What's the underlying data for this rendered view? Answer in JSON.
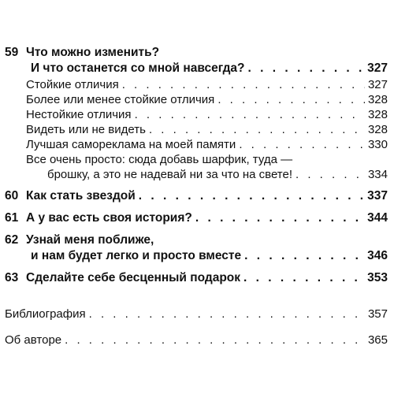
{
  "toc": {
    "ch59": {
      "number": "59",
      "title_line1": "Что можно изменить?",
      "title_line2": "И что останется со мной навсегда?",
      "page": "327",
      "sub": [
        {
          "title": "Стойкие отличия",
          "page": "327"
        },
        {
          "title": "Более или менее стойкие отличия",
          "page": "328"
        },
        {
          "title": "Нестойкие отличия",
          "page": "328"
        },
        {
          "title": "Видеть или не видеть",
          "page": "328"
        },
        {
          "title": "Лучшая самореклама на моей памяти",
          "page": "330"
        }
      ],
      "sub_multi": {
        "line1": "Все очень просто: сюда добавь шарфик, туда —",
        "line2": "брошку, а это не надевай ни за что на свете!",
        "page": "334"
      }
    },
    "ch60": {
      "number": "60",
      "title": "Как стать звездой",
      "page": "337"
    },
    "ch61": {
      "number": "61",
      "title": "А у вас есть своя история?",
      "page": "344"
    },
    "ch62": {
      "number": "62",
      "title_line1": "Узнай меня поближе,",
      "title_line2": "и нам будет легко и просто вместе",
      "page": "346"
    },
    "ch63": {
      "number": "63",
      "title": "Сделайте себе бесценный подарок",
      "page": "353"
    },
    "back": [
      {
        "title": "Библиография",
        "page": "357"
      },
      {
        "title": "Об авторе",
        "page": "365"
      }
    ]
  }
}
